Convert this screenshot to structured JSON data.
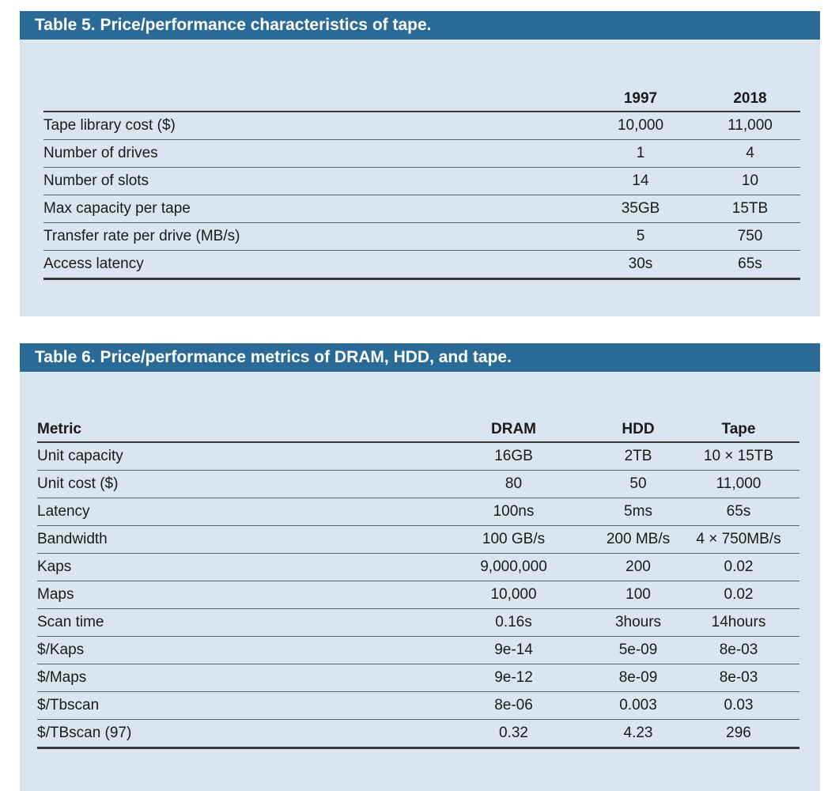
{
  "table5": {
    "title": "Table 5. Price/performance characteristics of tape.",
    "header": [
      "",
      "1997",
      "2018"
    ],
    "rows": [
      [
        "Tape library cost ($)",
        "10,000",
        "11,000"
      ],
      [
        "Number of drives",
        "1",
        "4"
      ],
      [
        "Number of slots",
        "14",
        "10"
      ],
      [
        "Max capacity per tape",
        "35GB",
        "15TB"
      ],
      [
        "Transfer rate per drive (MB/s)",
        "5",
        "750"
      ],
      [
        "Access latency",
        "30s",
        "65s"
      ]
    ]
  },
  "table6": {
    "title": "Table 6. Price/performance metrics of DRAM, HDD, and tape.",
    "header": [
      "Metric",
      "DRAM",
      "HDD",
      "Tape"
    ],
    "rows": [
      [
        "Unit capacity",
        "16GB",
        "2TB",
        "10 × 15TB"
      ],
      [
        "Unit cost ($)",
        "80",
        "50",
        "11,000"
      ],
      [
        "Latency",
        "100ns",
        "5ms",
        "65s"
      ],
      [
        "Bandwidth",
        "100 GB/s",
        "200 MB/s",
        "4 × 750MB/s"
      ],
      [
        "Kaps",
        "9,000,000",
        "200",
        "0.02"
      ],
      [
        "Maps",
        "10,000",
        "100",
        "0.02"
      ],
      [
        "Scan time",
        "0.16s",
        "3hours",
        "14hours"
      ],
      [
        "$/Kaps",
        "9e-14",
        "5e-09",
        "8e-03"
      ],
      [
        "$/Maps",
        "9e-12",
        "8e-09",
        "8e-03"
      ],
      [
        "$/Tbscan",
        "8e-06",
        "0.003",
        "0.03"
      ],
      [
        "$/TBscan (97)",
        "0.32",
        "4.23",
        "296"
      ]
    ]
  },
  "colors": {
    "header_bg": "#2a6a96",
    "panel_bg": "#d9e6f1"
  }
}
